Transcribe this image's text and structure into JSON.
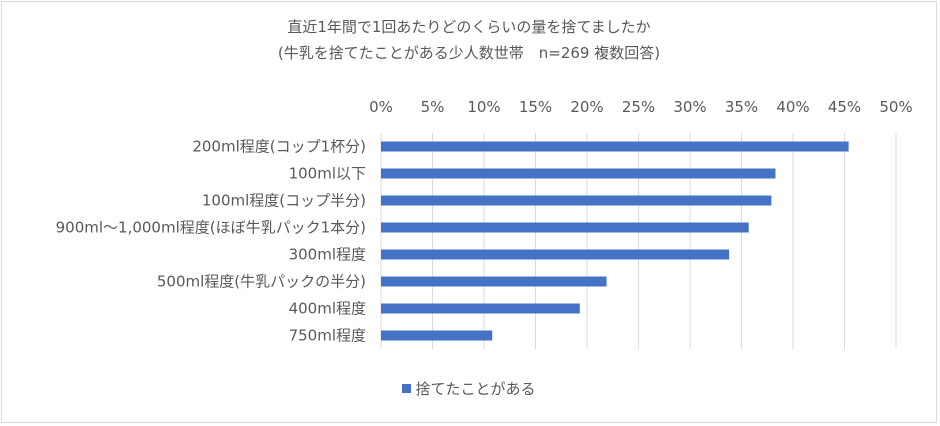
{
  "chart_data": {
    "type": "bar",
    "orientation": "horizontal",
    "title": "直近1年間で1回あたりどのくらいの量を捨てましたか",
    "subtitle": "(牛乳を捨てたことがある少人数世帯　n=269 複数回答)",
    "categories": [
      "200ml程度(コップ1杯分)",
      "100ml以下",
      "100ml程度(コップ半分)",
      "900ml～1,000ml程度(ほぼ牛乳パック1本分)",
      "300ml程度",
      "500ml程度(牛乳パックの半分)",
      "400ml程度",
      "750ml程度"
    ],
    "series": [
      {
        "name": "捨てたことがある",
        "values": [
          45.4,
          38.3,
          37.9,
          35.7,
          33.8,
          21.9,
          19.3,
          10.8
        ],
        "color": "#4472c4"
      }
    ],
    "xlim": [
      0,
      50
    ],
    "xticks": [
      "0%",
      "5%",
      "10%",
      "15%",
      "20%",
      "25%",
      "30%",
      "35%",
      "40%",
      "45%",
      "50%"
    ],
    "grid": true,
    "legend_position": "bottom"
  }
}
